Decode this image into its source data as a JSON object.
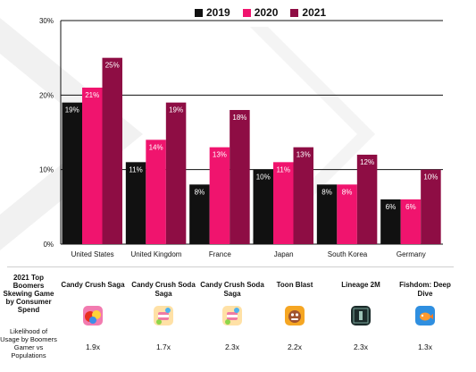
{
  "chart_data": {
    "type": "bar",
    "categories": [
      "United States",
      "United Kingdom",
      "France",
      "Japan",
      "South Korea",
      "Germany"
    ],
    "series": [
      {
        "name": "2019",
        "color": "#111111",
        "values": [
          19,
          11,
          8,
          10,
          8,
          6
        ],
        "labels": [
          "19%",
          "11%",
          "8%",
          "10%",
          "8%",
          "6%"
        ]
      },
      {
        "name": "2020",
        "color": "#f0146e",
        "values": [
          21,
          14,
          13,
          11,
          8,
          6
        ],
        "labels": [
          "21%",
          "14%",
          "13%",
          "11%",
          "8%",
          "6%"
        ]
      },
      {
        "name": "2021",
        "color": "#8e0d44",
        "values": [
          25,
          19,
          18,
          13,
          12,
          10
        ],
        "labels": [
          "25%",
          "19%",
          "18%",
          "13%",
          "12%",
          "10%"
        ]
      }
    ],
    "ylim": [
      0,
      30
    ],
    "yticks": [
      0,
      10,
      20,
      30
    ],
    "ytick_labels": [
      "0%",
      "10%",
      "20%",
      "30%"
    ],
    "grid": true,
    "legend": "top-center"
  },
  "table": {
    "row1_label": "2021 Top Boomers Skewing Game by Consumer Spend",
    "row2_label": "Likelihood of Usage by Boomers Gamer vs Populations",
    "games": [
      {
        "name": "Candy Crush Saga",
        "icon": "candy-crush-saga-icon",
        "multiplier": "1.9x"
      },
      {
        "name": "Candy Crush Soda Saga",
        "icon": "candy-crush-soda-saga-icon",
        "multiplier": "1.7x"
      },
      {
        "name": "Candy Crush Soda Saga",
        "icon": "candy-crush-soda-saga-icon",
        "multiplier": "2.3x"
      },
      {
        "name": "Toon Blast",
        "icon": "toon-blast-icon",
        "multiplier": "2.2x"
      },
      {
        "name": "Lineage 2M",
        "icon": "lineage-2m-icon",
        "multiplier": "2.3x"
      },
      {
        "name": "Fishdom: Deep Dive",
        "icon": "fishdom-icon",
        "multiplier": "1.3x"
      }
    ]
  }
}
